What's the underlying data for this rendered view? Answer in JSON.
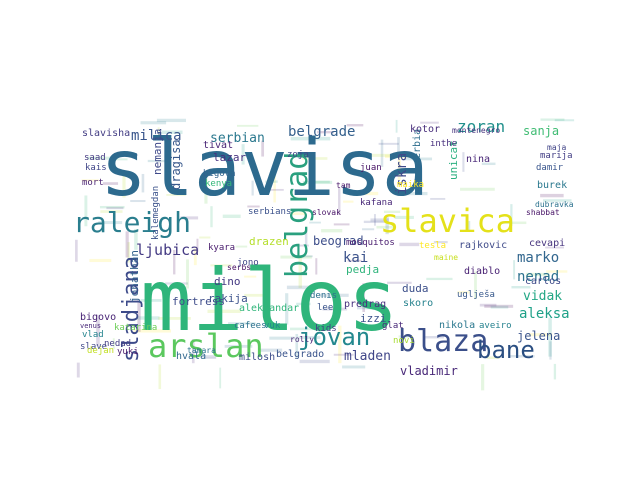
{
  "word_cloud": {
    "words": [
      {
        "text": "slavisa",
        "color": "#2d6a8e"
      },
      {
        "text": "milos",
        "color": "#2fb57b"
      },
      {
        "text": "raleigh",
        "color": "#2a7e8e"
      },
      {
        "text": "slavica",
        "color": "#e4e11a"
      },
      {
        "text": "arslan",
        "color": "#5bc85e"
      },
      {
        "text": "blaza",
        "color": "#3b4f8a"
      },
      {
        "text": "bane",
        "color": "#2b4f82"
      },
      {
        "text": "jovan",
        "color": "#23888e"
      },
      {
        "text": "sladjana",
        "color": "#3d4b8a"
      },
      {
        "text": "belgrad",
        "color": "#2aa07f"
      },
      {
        "text": "milica",
        "color": "#3a568c"
      },
      {
        "text": "serbian",
        "color": "#2a788e"
      },
      {
        "text": "belgrade",
        "color": "#34608d"
      },
      {
        "text": "zoran",
        "color": "#21908c"
      },
      {
        "text": "ljubica",
        "color": "#443a83"
      },
      {
        "text": "beograd",
        "color": "#3d4e8a"
      },
      {
        "text": "kai",
        "color": "#3b528b"
      },
      {
        "text": "marko",
        "color": "#31668e"
      },
      {
        "text": "nenad",
        "color": "#2c728e"
      },
      {
        "text": "vidak",
        "color": "#22a785"
      },
      {
        "text": "aleksa",
        "color": "#1fa188"
      },
      {
        "text": "mladen",
        "color": "#404688"
      },
      {
        "text": "vladimir",
        "color": "#482878"
      },
      {
        "text": "iskra",
        "color": "#3e4a89"
      },
      {
        "text": "serbia",
        "color": "#2e6e8e"
      },
      {
        "text": "sanja",
        "color": "#3fbc73"
      },
      {
        "text": "kotor",
        "color": "#472d7b"
      },
      {
        "text": "montenegro",
        "color": "#46337e"
      },
      {
        "text": "lazar",
        "color": "#46307e"
      },
      {
        "text": "tivat",
        "color": "#482475"
      },
      {
        "text": "nemanja",
        "color": "#3e4989"
      },
      {
        "text": "dragisa",
        "color": "#38598c"
      },
      {
        "text": "slavisha",
        "color": "#433d84"
      },
      {
        "text": "kais",
        "color": "#404588"
      },
      {
        "text": "saad",
        "color": "#453882"
      },
      {
        "text": "mort",
        "color": "#481f70"
      },
      {
        "text": "jonathan",
        "color": "#34618d"
      },
      {
        "text": "nina",
        "color": "#482677"
      },
      {
        "text": "juan",
        "color": "#471365"
      },
      {
        "text": "zoja",
        "color": "#3f4788"
      },
      {
        "text": "kenya",
        "color": "#35b779"
      },
      {
        "text": "bigova",
        "color": "#32648e"
      },
      {
        "text": "kyara",
        "color": "#481b6d"
      },
      {
        "text": "serbs",
        "color": "#471063"
      },
      {
        "text": "dino",
        "color": "#443983"
      },
      {
        "text": "rakija",
        "color": "#3b518b"
      },
      {
        "text": "fortress",
        "color": "#3e4c8a"
      },
      {
        "text": "aleksandar",
        "color": "#31b57b"
      },
      {
        "text": "predrag",
        "color": "#46307e"
      },
      {
        "text": "denis",
        "color": "#2e6f8e"
      },
      {
        "text": "lee",
        "color": "#3a538b"
      },
      {
        "text": "pedja",
        "color": "#2fb47c"
      },
      {
        "text": "izzi",
        "color": "#3b528b"
      },
      {
        "text": "duda",
        "color": "#3c4f8a"
      },
      {
        "text": "skoro",
        "color": "#26828e"
      },
      {
        "text": "novi",
        "color": "#a8db34"
      },
      {
        "text": "glat",
        "color": "#482878"
      },
      {
        "text": "nikola",
        "color": "#2a778e"
      },
      {
        "text": "aveiro",
        "color": "#26828e"
      },
      {
        "text": "jelena",
        "color": "#3a548c"
      },
      {
        "text": "uglješa",
        "color": "#38598c"
      },
      {
        "text": "carlos",
        "color": "#3e4a89"
      },
      {
        "text": "diablo",
        "color": "#482173"
      },
      {
        "text": "cevapi",
        "color": "#46337e"
      },
      {
        "text": "rajkovic",
        "color": "#3e4a89"
      },
      {
        "text": "tesla",
        "color": "#fde725"
      },
      {
        "text": "maine",
        "color": "#c8e020"
      },
      {
        "text": "mosquitos",
        "color": "#481c6e"
      },
      {
        "text": "kafana",
        "color": "#482878"
      },
      {
        "text": "burek",
        "color": "#2a788e"
      },
      {
        "text": "marija",
        "color": "#433e85"
      },
      {
        "text": "maja",
        "color": "#414487"
      },
      {
        "text": "damir",
        "color": "#39558c"
      },
      {
        "text": "dubravka",
        "color": "#2c728e"
      },
      {
        "text": "unicat",
        "color": "#2ab07f"
      },
      {
        "text": "shabbat",
        "color": "#481467"
      },
      {
        "text": "drazen",
        "color": "#b5de2b"
      },
      {
        "text": "jono",
        "color": "#3f4788"
      },
      {
        "text": "kalemegdan",
        "color": "#3b528b"
      },
      {
        "text": "katarina",
        "color": "#6ece58"
      },
      {
        "text": "bigovo",
        "color": "#482475"
      },
      {
        "text": "vlad",
        "color": "#25848e"
      },
      {
        "text": "venus",
        "color": "#482878"
      },
      {
        "text": "slave",
        "color": "#3f4889"
      },
      {
        "text": "nedad",
        "color": "#433e85"
      },
      {
        "text": "yuki",
        "color": "#481a6c"
      },
      {
        "text": "cafees",
        "color": "#2c728e"
      },
      {
        "text": "vuk",
        "color": "#23898e"
      },
      {
        "text": "hvala",
        "color": "#31688e"
      },
      {
        "text": "milosh",
        "color": "#3d4d8a"
      },
      {
        "text": "belgrado",
        "color": "#3a548c"
      },
      {
        "text": "tamara",
        "color": "#2c738e"
      },
      {
        "text": "rolly",
        "color": "#482677"
      },
      {
        "text": "dejan",
        "color": "#c2df23"
      },
      {
        "text": "kids",
        "color": "#433e85"
      },
      {
        "text": "slovak",
        "color": "#481467"
      },
      {
        "text": "serbians",
        "color": "#3b518b"
      },
      {
        "text": "inthe",
        "color": "#472f7d"
      },
      {
        "text": "maika",
        "color": "#fde725"
      },
      {
        "text": "tam",
        "color": "#481769"
      }
    ]
  }
}
